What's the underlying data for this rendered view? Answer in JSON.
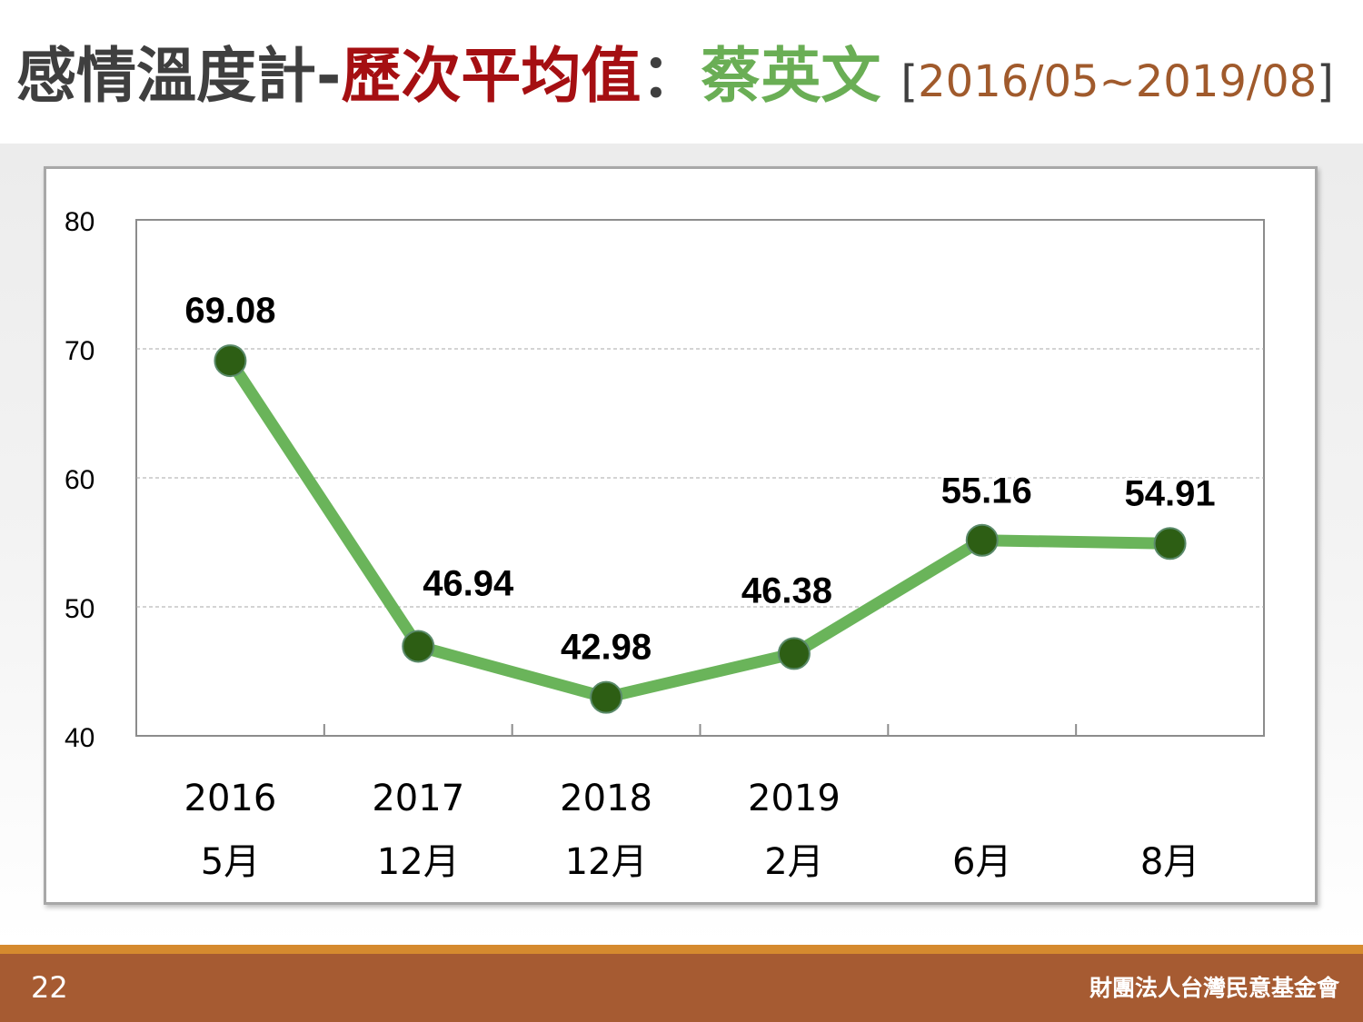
{
  "header": {
    "title_part1": "感情溫度計-",
    "title_part2": "歷次平均值",
    "title_sep": "：",
    "title_person": "蔡英文",
    "title_open": "[",
    "title_range": "2016/05~2019/08",
    "title_close": "]"
  },
  "footer": {
    "page_number": "22",
    "organization": "財團法人台灣民意基金會"
  },
  "colors": {
    "title_gray": "#3f3f3f",
    "title_red": "#a50f12",
    "title_green": "#6aae55",
    "range_brown": "#a05a2c",
    "line_green": "#6ab45a",
    "marker_dark_green": "#2d5e14",
    "footer_brown": "#a65b32",
    "footer_stripe": "#d58a2e"
  },
  "chart_data": {
    "type": "line",
    "x_year_labels": [
      "2016",
      "2017",
      "2018",
      "2019",
      "",
      ""
    ],
    "x_month_labels": [
      "5月",
      "12月",
      "12月",
      "2月",
      "6月",
      "8月"
    ],
    "categories": [
      "2016 5月",
      "2017 12月",
      "2018 12月",
      "2019 2月",
      "2019 6月",
      "2019 8月"
    ],
    "values": [
      69.08,
      46.94,
      42.98,
      46.38,
      55.16,
      54.91
    ],
    "data_labels": [
      "69.08",
      "46.94",
      "42.98",
      "46.38",
      "55.16",
      "54.91"
    ],
    "ylim": [
      40,
      80
    ],
    "y_ticks": [
      40,
      50,
      60,
      70,
      80
    ],
    "y_tick_labels": [
      "40",
      "50",
      "60",
      "70",
      "80"
    ],
    "grid": true,
    "title": "",
    "xlabel": "",
    "ylabel": ""
  }
}
